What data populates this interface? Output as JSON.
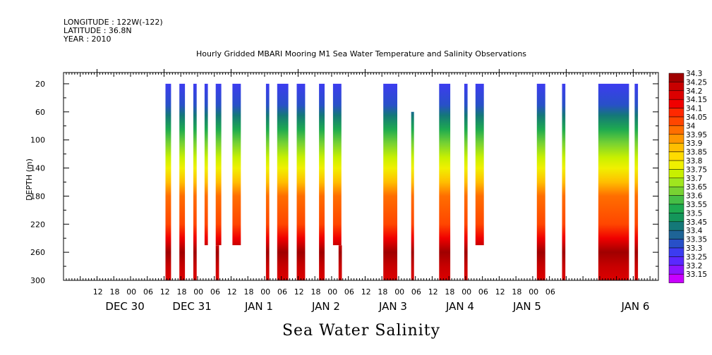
{
  "header": {
    "longitude": "LONGITUDE : 122W(-122)",
    "latitude": "LATITUDE : 36.8N",
    "year": "YEAR : 2010",
    "title": "Hourly Gridded MBARI Mooring M1 Sea Water Temperature and Salinity Observations"
  },
  "chart_data": {
    "type": "heatmap",
    "title": "Hourly Gridded MBARI Mooring M1 Sea Water Temperature and Salinity Observations",
    "xlabel": "Sea Water Salinity",
    "ylabel": "DEPTH (m)",
    "ylim": [
      300,
      4
    ],
    "y_ticks": [
      20,
      60,
      100,
      140,
      180,
      220,
      260,
      300
    ],
    "x_range_hours": [
      0,
      174
    ],
    "x_hour_labels": [
      "12",
      "18",
      "00",
      "06",
      "12",
      "18",
      "00",
      "06",
      "12",
      "18",
      "00",
      "06",
      "12",
      "18",
      "00",
      "06",
      "12",
      "18",
      "00",
      "06",
      "12",
      "18",
      "00",
      "06",
      "12",
      "18",
      "00",
      "06"
    ],
    "x_month_labels": [
      "DEC 30",
      "DEC 31",
      "JAN  1",
      "JAN  2",
      "JAN  3",
      "JAN  4",
      "JAN  5",
      "JAN  6"
    ],
    "legend_levels": [
      "34.3",
      "34.25",
      "34.2",
      "34.15",
      "34.1",
      "34.05",
      "34",
      "33.95",
      "33.9",
      "33.85",
      "33.8",
      "33.75",
      "33.7",
      "33.65",
      "33.6",
      "33.55",
      "33.5",
      "33.45",
      "33.4",
      "33.35",
      "33.3",
      "33.25",
      "33.2",
      "33.15"
    ],
    "legend_colors": [
      "#a00000",
      "#c80000",
      "#dc0000",
      "#f00000",
      "#ff2800",
      "#ff4600",
      "#ff6e00",
      "#ff9600",
      "#ffbe00",
      "#ffdc00",
      "#f0f000",
      "#c8f000",
      "#a0e61e",
      "#78d232",
      "#46be46",
      "#1eaa50",
      "#14965a",
      "#147878",
      "#1e6496",
      "#2850c8",
      "#3c3cf0",
      "#5a28ff",
      "#8c14ff",
      "#c800ff"
    ],
    "series": [
      {
        "start_h": 36.5,
        "end_h": 38.5,
        "bottom": 300,
        "top": 20
      },
      {
        "start_h": 41.5,
        "end_h": 43.5,
        "bottom": 300,
        "top": 20
      },
      {
        "start_h": 46.5,
        "end_h": 47.7,
        "bottom": 300,
        "top": 20
      },
      {
        "start_h": 50.5,
        "end_h": 51.7,
        "bottom": 250,
        "top": 20
      },
      {
        "start_h": 54.5,
        "end_h": 56.5,
        "bottom": 250,
        "top": 20
      },
      {
        "start_h": 54.5,
        "end_h": 55.7,
        "bottom": 300,
        "top": 250
      },
      {
        "start_h": 60.5,
        "end_h": 63.5,
        "bottom": 250,
        "top": 20
      },
      {
        "start_h": 72.5,
        "end_h": 73.7,
        "bottom": 300,
        "top": 20
      },
      {
        "start_h": 76.5,
        "end_h": 80.5,
        "bottom": 300,
        "top": 20
      },
      {
        "start_h": 83.5,
        "end_h": 86.5,
        "bottom": 300,
        "top": 20
      },
      {
        "start_h": 91.5,
        "end_h": 93.5,
        "bottom": 300,
        "top": 20
      },
      {
        "start_h": 96.5,
        "end_h": 99.5,
        "bottom": 250,
        "top": 20
      },
      {
        "start_h": 98.5,
        "end_h": 99.7,
        "bottom": 300,
        "top": 250
      },
      {
        "start_h": 114.5,
        "end_h": 119.5,
        "bottom": 300,
        "top": 20
      },
      {
        "start_h": 124.5,
        "end_h": 125.5,
        "bottom": 300,
        "top": 60
      },
      {
        "start_h": 134.5,
        "end_h": 138.5,
        "bottom": 300,
        "top": 20
      },
      {
        "start_h": 143.5,
        "end_h": 144.7,
        "bottom": 300,
        "top": 20
      },
      {
        "start_h": 147.5,
        "end_h": 150.5,
        "bottom": 250,
        "top": 20
      },
      {
        "start_h": 169.5,
        "end_h": 172.5,
        "bottom": 300,
        "top": 20
      },
      {
        "start_h": 178.5,
        "end_h": 179.7,
        "bottom": 300,
        "top": 20
      },
      {
        "start_h": 191.5,
        "end_h": 202.5,
        "bottom": 300,
        "top": 20
      },
      {
        "start_h": 204.5,
        "end_h": 205.7,
        "bottom": 300,
        "top": 20
      }
    ]
  }
}
